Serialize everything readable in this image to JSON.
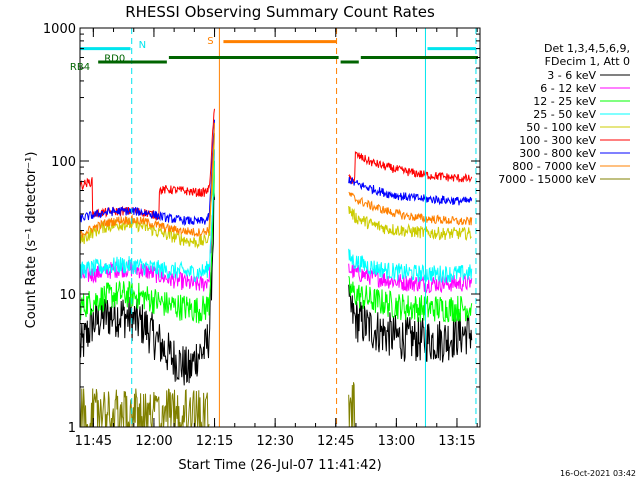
{
  "chart_data": {
    "type": "line",
    "title": "RHESSI Observing Summary Count Rates",
    "xlabel": "Start Time (26-Jul-07 11:41:42)",
    "ylabel": "Count Rate (s⁻¹ detector⁻¹)",
    "yscale": "log",
    "ylim": [
      1,
      1000
    ],
    "xlim_minutes": [
      0,
      99
    ],
    "x_units": "minutes after 11:41:42",
    "x_ticks": [
      {
        "label": "11:45",
        "minute": 3.3
      },
      {
        "label": "12:00",
        "minute": 18.3
      },
      {
        "label": "12:15",
        "minute": 33.3
      },
      {
        "label": "12:30",
        "minute": 48.3
      },
      {
        "label": "12:45",
        "minute": 63.3
      },
      {
        "label": "13:00",
        "minute": 78.3
      },
      {
        "label": "13:15",
        "minute": 93.3
      }
    ],
    "y_ticks": [
      {
        "label": "1",
        "value": 1
      },
      {
        "label": "10",
        "value": 10
      },
      {
        "label": "100",
        "value": 100
      },
      {
        "label": "1000",
        "value": 1000
      }
    ],
    "legend": {
      "position": "right",
      "header": [
        "Det 1,3,4,5,6,9,",
        "FDecim 1, Att 0"
      ]
    },
    "timestamp": "16-Oct-2021 03:42",
    "series": [
      {
        "name": "3 - 6 keV",
        "color": "#000000",
        "x": [
          0,
          3,
          6,
          10,
          13,
          16,
          19,
          22,
          25,
          27,
          29,
          31,
          32,
          32.8,
          33.3,
          66.5,
          68,
          72,
          76,
          80,
          85,
          90,
          94,
          97
        ],
        "y": [
          3.8,
          6.0,
          6.8,
          7.0,
          6.5,
          5.8,
          4.5,
          3.5,
          3.0,
          2.6,
          3.5,
          3.8,
          5.0,
          20,
          60,
          8.2,
          6.5,
          5.5,
          5.0,
          4.6,
          4.5,
          4.5,
          5.0,
          5.2
        ]
      },
      {
        "name": "6 - 12 keV",
        "color": "#ff00ff",
        "x": [
          0,
          3,
          6,
          10,
          13,
          16,
          19,
          22,
          25,
          27,
          29,
          31,
          32,
          32.8,
          33.3,
          66.5,
          68,
          72,
          76,
          80,
          85,
          90,
          94,
          97
        ],
        "y": [
          13.5,
          14.0,
          14.8,
          15.5,
          15.5,
          15.0,
          14.0,
          13.0,
          12.5,
          12.0,
          11.8,
          12.0,
          13.5,
          40,
          110,
          15.5,
          14.5,
          13.5,
          12.8,
          12.2,
          12.0,
          12.0,
          12.0,
          12.2
        ]
      },
      {
        "name": "12 - 25 keV",
        "color": "#00ff00",
        "x": [
          0,
          3,
          6,
          10,
          13,
          16,
          19,
          22,
          25,
          27,
          29,
          31,
          32,
          32.8,
          33.3,
          66.5,
          68,
          72,
          76,
          80,
          85,
          90,
          94,
          97
        ],
        "y": [
          8.0,
          8.8,
          9.5,
          10.0,
          9.8,
          9.5,
          8.8,
          8.2,
          8.0,
          7.8,
          7.6,
          7.8,
          8.5,
          30,
          80,
          11.0,
          10.0,
          9.0,
          8.5,
          8.0,
          7.8,
          7.8,
          7.8,
          8.0
        ]
      },
      {
        "name": "25 - 50 keV",
        "color": "#00ffff",
        "x": [
          0,
          3,
          6,
          10,
          13,
          16,
          19,
          22,
          25,
          27,
          29,
          31,
          32,
          32.8,
          33.3,
          66.5,
          68,
          72,
          76,
          80,
          85,
          90,
          94,
          97
        ],
        "y": [
          15.0,
          15.5,
          16.0,
          16.5,
          16.5,
          16.0,
          15.5,
          15.0,
          14.8,
          14.5,
          14.5,
          14.8,
          16.0,
          45,
          120,
          19.0,
          17.5,
          16.0,
          15.0,
          14.5,
          14.2,
          14.2,
          14.2,
          14.5
        ]
      },
      {
        "name": "50 - 100 keV",
        "color": "#cccc00",
        "x": [
          0,
          3,
          6,
          10,
          13,
          16,
          19,
          22,
          25,
          27,
          29,
          31,
          32,
          32.8,
          33.3,
          66.5,
          68,
          72,
          76,
          80,
          85,
          90,
          94,
          97
        ],
        "y": [
          25.0,
          29.0,
          32.0,
          33.5,
          33.5,
          32.0,
          29.5,
          27.5,
          26.0,
          25.0,
          24.5,
          25.0,
          27.0,
          70,
          150,
          44.0,
          38.0,
          33.5,
          31.0,
          30.0,
          29.0,
          28.5,
          28.5,
          28.5
        ]
      },
      {
        "name": "100 - 300 keV",
        "color": "#ff0000",
        "x": [
          0,
          1.5,
          3,
          3.1,
          6,
          10,
          13,
          16,
          19,
          19.5,
          19.6,
          22,
          25,
          27,
          29,
          31,
          32,
          32.8,
          33.3,
          66.5,
          68,
          68.1,
          72,
          76,
          80,
          85,
          90,
          94,
          97
        ],
        "y": [
          65,
          68,
          70,
          40,
          41,
          42,
          42,
          41,
          39,
          39,
          60,
          61,
          60,
          59,
          58,
          58,
          62,
          150,
          260,
          73,
          72,
          112,
          98,
          90,
          84,
          79,
          76,
          74,
          73
        ]
      },
      {
        "name": "300 - 800 keV",
        "color": "#0000ff",
        "x": [
          0,
          3,
          6,
          10,
          13,
          16,
          19,
          22,
          25,
          27,
          29,
          31,
          32,
          32.8,
          33.3,
          66.5,
          68,
          72,
          76,
          80,
          85,
          90,
          94,
          97
        ],
        "y": [
          37,
          39,
          41,
          42,
          42,
          41,
          39,
          37,
          36,
          35.5,
          35,
          35.5,
          38,
          110,
          200,
          73,
          68,
          62,
          57,
          54,
          52,
          51,
          50,
          50
        ]
      },
      {
        "name": "800 - 7000 keV",
        "color": "#ff8000",
        "x": [
          0,
          3,
          6,
          10,
          13,
          16,
          19,
          22,
          25,
          27,
          29,
          31,
          32,
          32.8,
          33.3,
          66.5,
          68,
          72,
          76,
          80,
          85,
          90,
          94,
          97
        ],
        "y": [
          28,
          31,
          34,
          36,
          36,
          35,
          33,
          31,
          30,
          29.5,
          29,
          29.5,
          31,
          90,
          180,
          57,
          52,
          46,
          42,
          39,
          37,
          36,
          35,
          35
        ]
      },
      {
        "name": "7000 - 15000 keV",
        "color": "#808000",
        "x": [
          0,
          3,
          6,
          10,
          13,
          16,
          19,
          22,
          25,
          27,
          29,
          31,
          31.5,
          32,
          66.5,
          67,
          68
        ],
        "y": [
          1.5,
          1.9,
          1.9,
          1.6,
          1.9,
          1.6,
          1.9,
          1.6,
          1.5,
          1.3,
          1.2,
          1.2,
          1.0,
          1.0,
          1.9,
          1.4,
          1.0
        ]
      }
    ],
    "annotations": {
      "labels": [
        {
          "text": "N",
          "color": "#00e5ee",
          "minute": 14.5,
          "y": 760
        },
        {
          "text": "S",
          "color": "#ff8000",
          "minute": 31.5,
          "y": 810
        },
        {
          "text": "RD0",
          "color": "#006400",
          "minute": 6.0,
          "y": 600
        },
        {
          "text": "RB4",
          "color": "#006400",
          "minute": -2.5,
          "y": 520
        }
      ],
      "segments": [
        {
          "color": "#00e5ee",
          "from": 0,
          "to": 12.5,
          "y": 700
        },
        {
          "color": "#00e5ee",
          "from": 86.0,
          "to": 98.0,
          "y": 700
        },
        {
          "color": "#ff8000",
          "from": 35.5,
          "to": 63.5,
          "y": 790
        },
        {
          "color": "#006400",
          "from": 4.5,
          "to": 21.5,
          "y": 555
        },
        {
          "color": "#006400",
          "from": 22.0,
          "to": 64.0,
          "y": 600
        },
        {
          "color": "#006400",
          "from": 64.5,
          "to": 69.0,
          "y": 555
        },
        {
          "color": "#006400",
          "from": 69.5,
          "to": 98.5,
          "y": 600
        }
      ],
      "vlines": [
        {
          "color": "#00e5ee",
          "minute": 12.8,
          "style": "dashed"
        },
        {
          "color": "#ff8000",
          "minute": 34.5,
          "style": "solid"
        },
        {
          "color": "#ff8000",
          "minute": 63.5,
          "style": "dashed"
        },
        {
          "color": "#00e5ee",
          "minute": 85.5,
          "style": "solid"
        },
        {
          "color": "#00e5ee",
          "minute": 98.0,
          "style": "dashed"
        }
      ]
    }
  }
}
